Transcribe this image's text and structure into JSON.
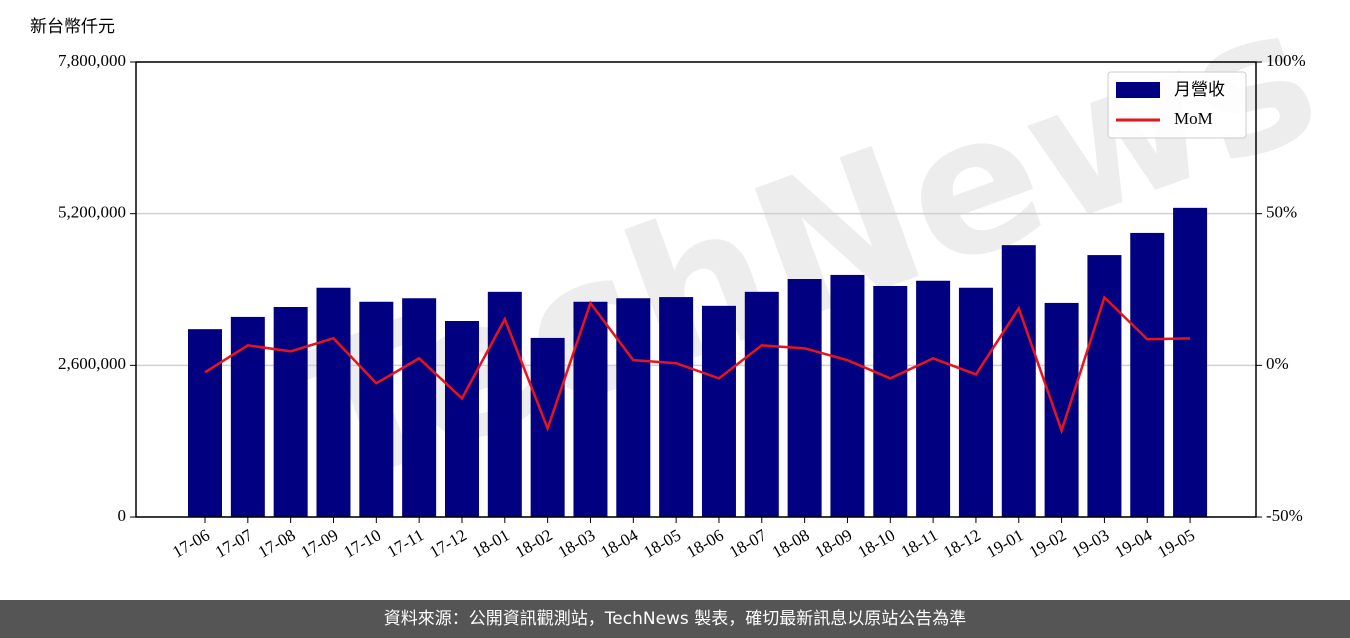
{
  "chart_data": {
    "type": "bar_line",
    "y_label": "新台幣仟元",
    "watermark": "TechNews",
    "footer": "資料來源：公開資訊觀測站，TechNews 製表，確切最新訊息以原站公告為準",
    "categories": [
      "17-06",
      "17-07",
      "17-08",
      "17-09",
      "17-10",
      "17-11",
      "17-12",
      "18-01",
      "18-02",
      "18-03",
      "18-04",
      "18-05",
      "18-06",
      "18-07",
      "18-08",
      "18-09",
      "18-10",
      "18-11",
      "18-12",
      "19-01",
      "19-02",
      "19-03",
      "19-04",
      "19-05"
    ],
    "series": [
      {
        "name": "月營收",
        "type": "bar",
        "color": "#000080",
        "values": [
          3220000,
          3430000,
          3600000,
          3930000,
          3690000,
          3750000,
          3360000,
          3860000,
          3070000,
          3690000,
          3750000,
          3770000,
          3620000,
          3860000,
          4080000,
          4150000,
          3960000,
          4050000,
          3930000,
          4660000,
          3670000,
          4490000,
          4870000,
          5300000
        ]
      },
      {
        "name": "MoM",
        "type": "line",
        "axis": "y2",
        "color": "#e8141b",
        "values": [
          -2.3,
          6.6,
          4.6,
          8.9,
          -5.9,
          2.3,
          -10.9,
          15.2,
          -20.8,
          20.5,
          1.7,
          0.7,
          -4.3,
          6.6,
          5.6,
          1.7,
          -4.3,
          2.3,
          -3.0,
          18.8,
          -21.5,
          22.4,
          8.6,
          8.9
        ]
      }
    ],
    "ylim": [
      0,
      7800000
    ],
    "yticks": [
      0,
      {
        "value": 2600000,
        "label": "2,600,000"
      },
      {
        "value": 5200000,
        "label": "5,200,000"
      },
      {
        "value": 7800000,
        "label": "7,800,000"
      }
    ],
    "y2lim": [
      -50,
      100
    ],
    "y2ticks": [
      {
        "value": -50,
        "label": "-50%"
      },
      {
        "value": 0,
        "label": "0%"
      },
      {
        "value": 50,
        "label": "50%"
      },
      {
        "value": 100,
        "label": "100%"
      }
    ],
    "grid": true,
    "legend": "upper right"
  }
}
